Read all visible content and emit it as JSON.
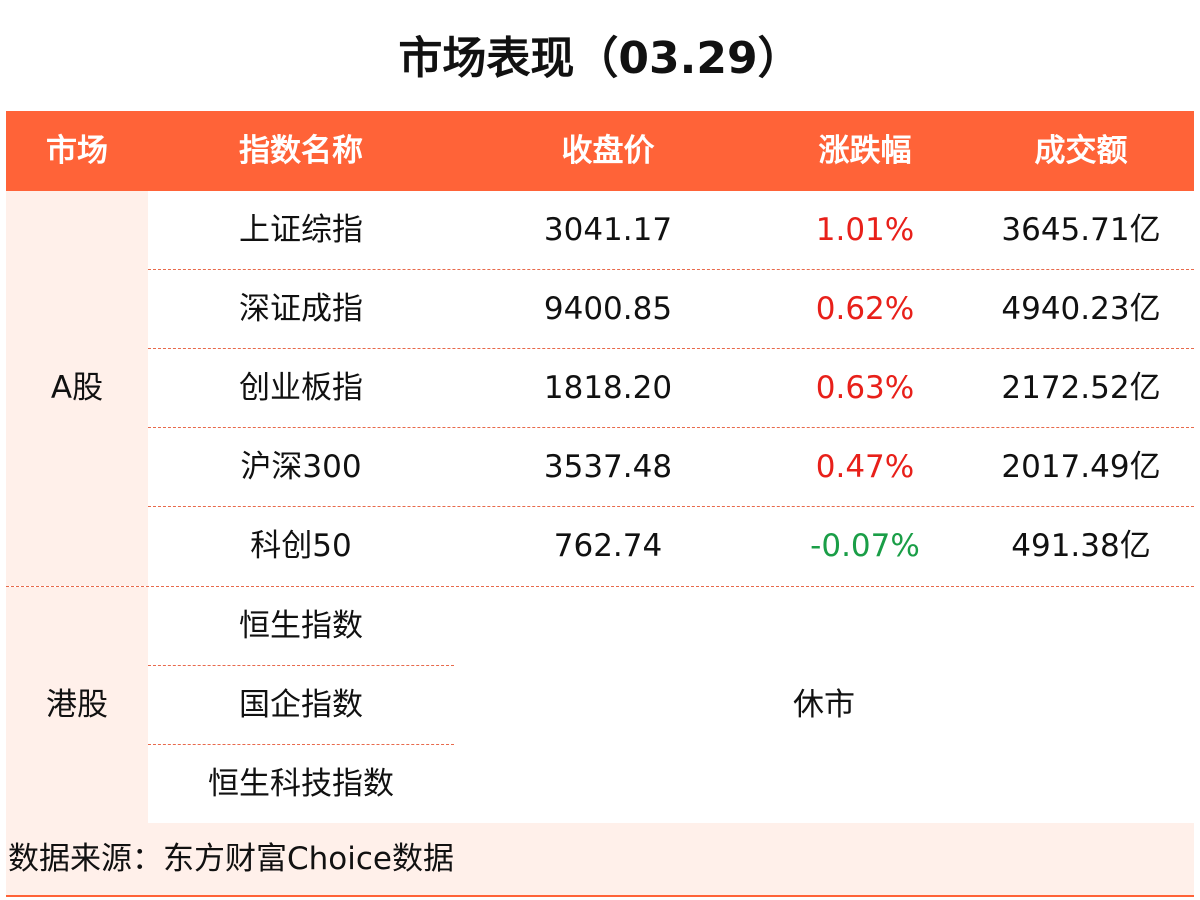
{
  "title": "市场表现（03.29）",
  "header": {
    "market": "市场",
    "index_name": "指数名称",
    "close": "收盘价",
    "change": "涨跌幅",
    "amount": "成交额"
  },
  "groups": [
    {
      "market": "A股",
      "rows": [
        {
          "name": "上证综指",
          "close": "3041.17",
          "change": "1.01%",
          "direction": "up",
          "amount": "3645.71亿"
        },
        {
          "name": "深证成指",
          "close": "9400.85",
          "change": "0.62%",
          "direction": "up",
          "amount": "4940.23亿"
        },
        {
          "name": "创业板指",
          "close": "1818.20",
          "change": "0.63%",
          "direction": "up",
          "amount": "2172.52亿"
        },
        {
          "name": "沪深300",
          "close": "3537.48",
          "change": "0.47%",
          "direction": "up",
          "amount": "2017.49亿"
        },
        {
          "name": "科创50",
          "close": "762.74",
          "change": "-0.07%",
          "direction": "down",
          "amount": "491.38亿"
        }
      ]
    },
    {
      "market": "港股",
      "rows": [
        {
          "name": "恒生指数"
        },
        {
          "name": "国企指数"
        },
        {
          "name": "恒生科技指数"
        }
      ],
      "status": "休市"
    }
  ],
  "source": "数据来源：东方财富Choice数据",
  "colors": {
    "header_bg": "#ff6338",
    "row_bg": "#fff0ea",
    "up": "#e8201a",
    "down": "#1a9e47"
  }
}
